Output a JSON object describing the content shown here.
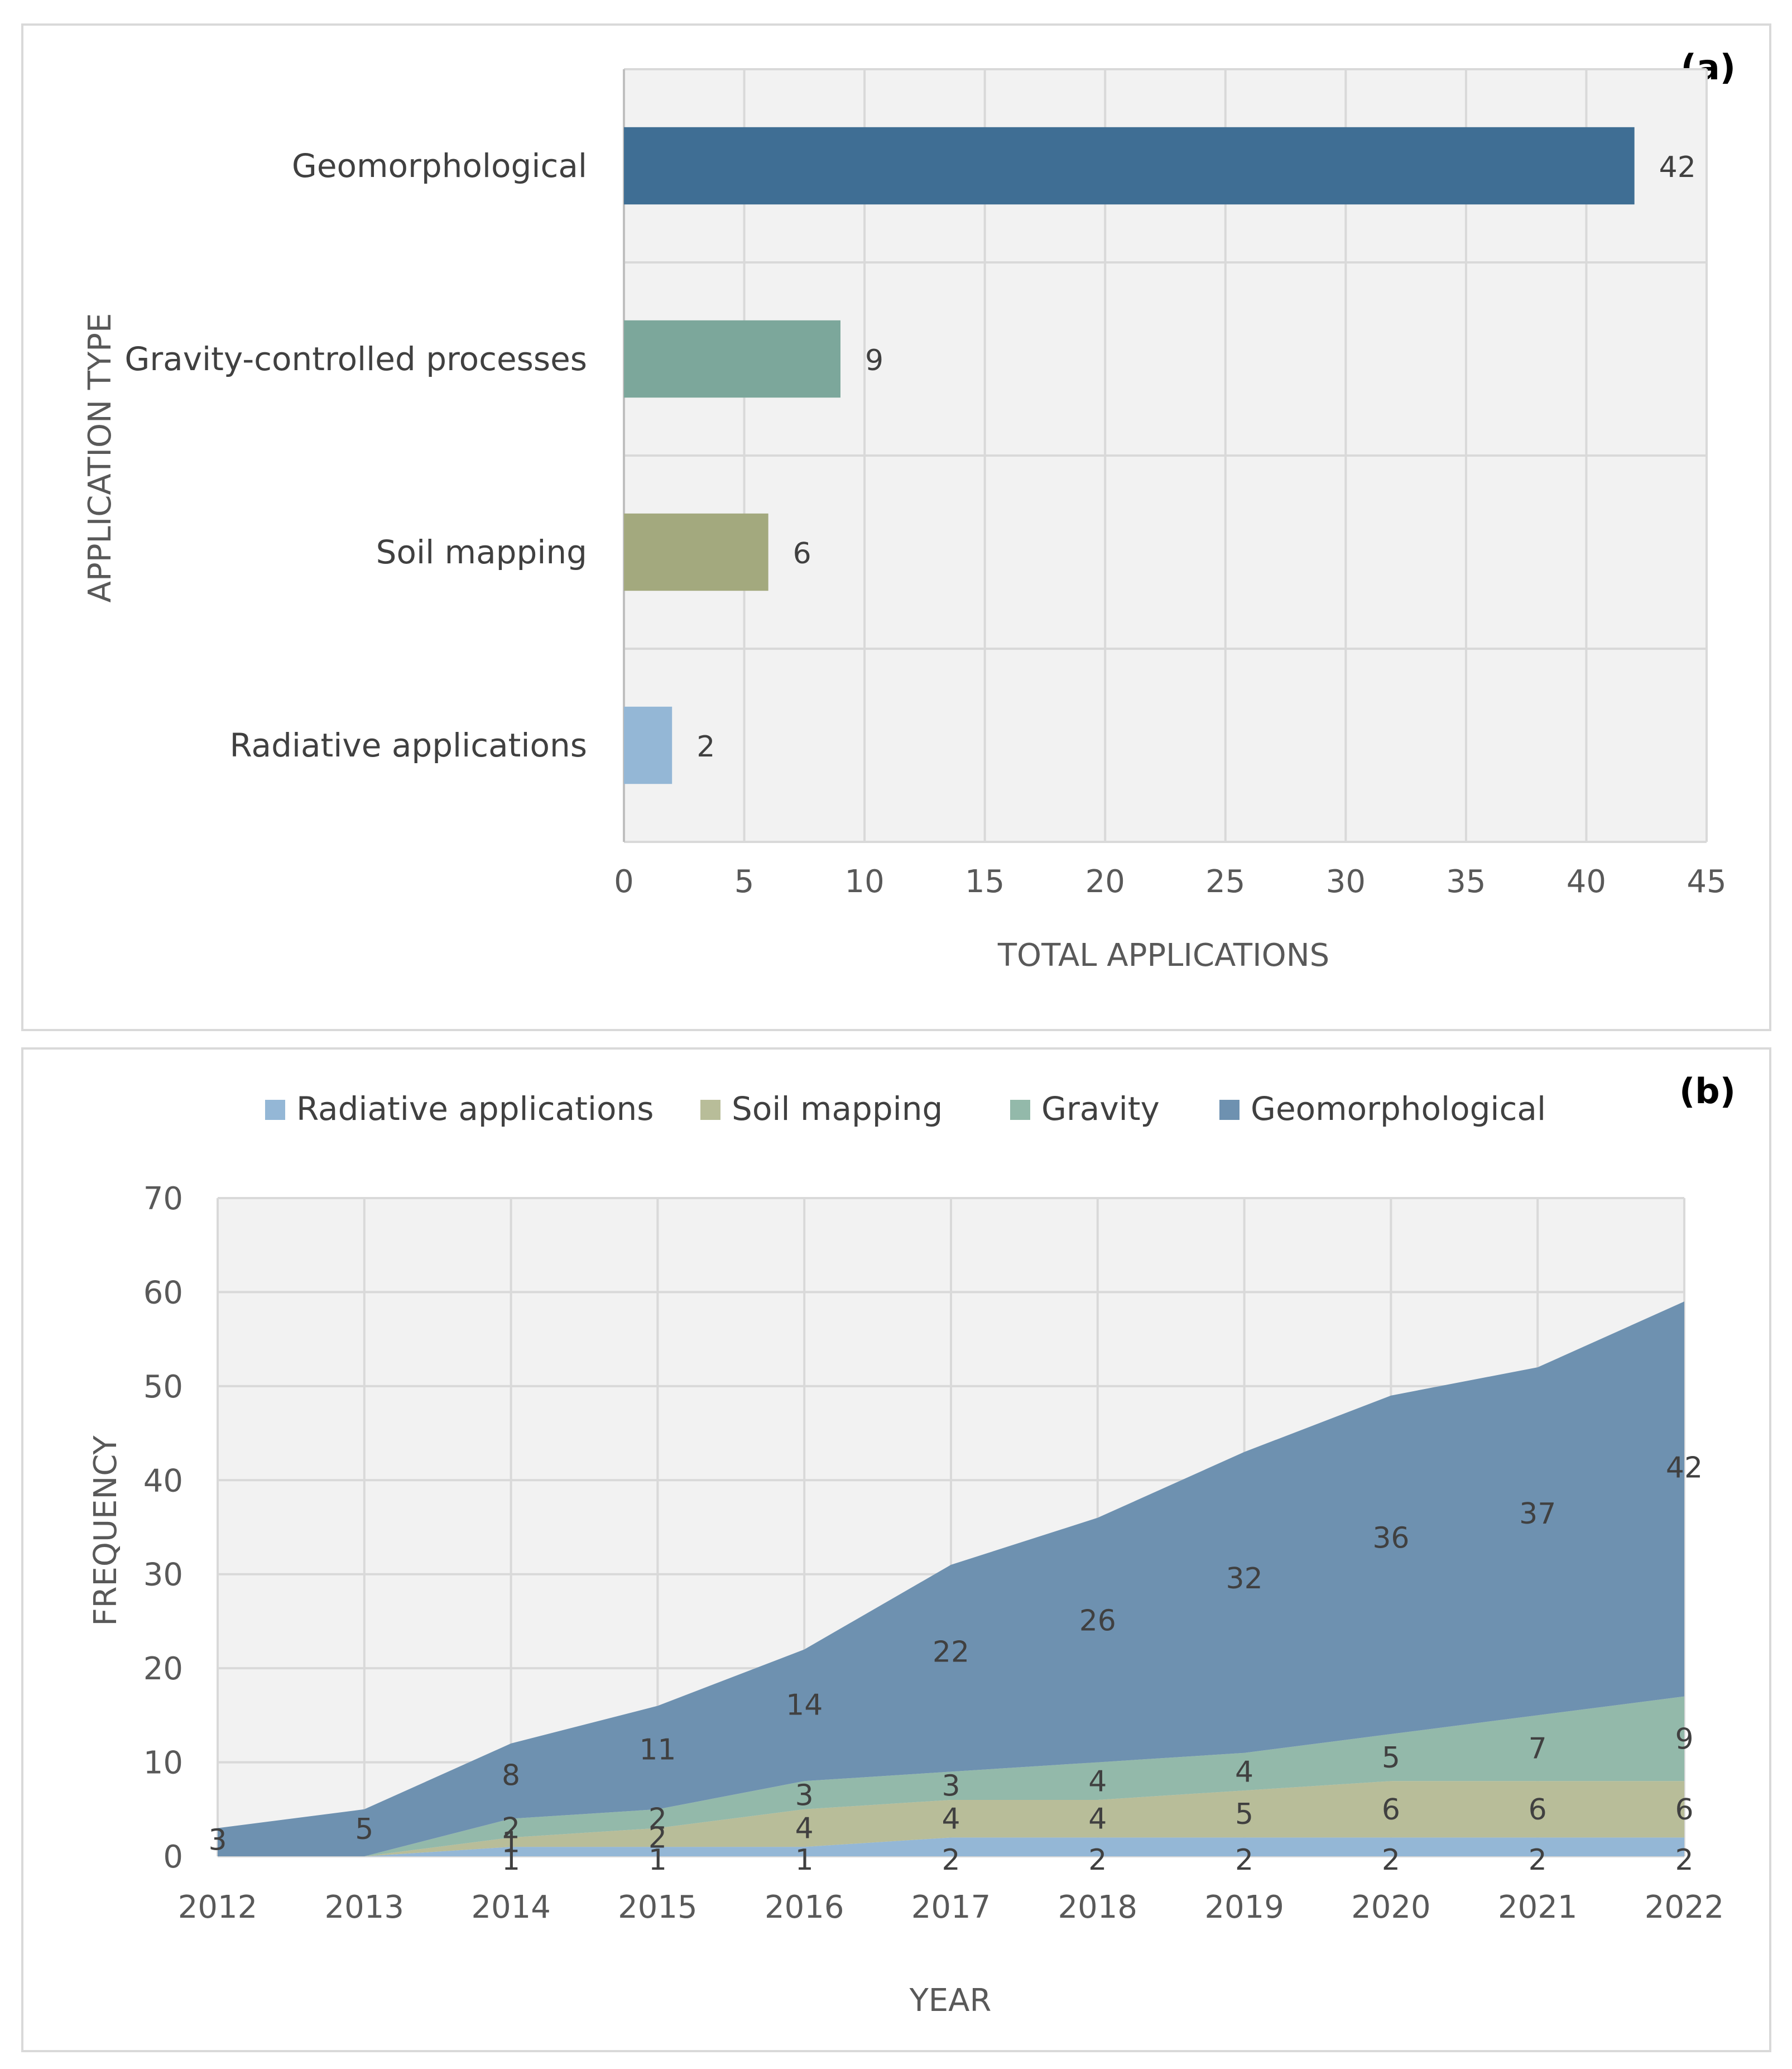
{
  "chart_data": [
    {
      "type": "bar",
      "orientation": "horizontal",
      "panel_label": "(a)",
      "categories": [
        "Geomorphological",
        "Gravity-controlled processes",
        "Soil mapping",
        "Radiative applications"
      ],
      "values": [
        42,
        9,
        6,
        2
      ],
      "colors": [
        "#3f6e94",
        "#7ca79b",
        "#a3a97e",
        "#94b7d6"
      ],
      "xlabel": "TOTAL APPLICATIONS",
      "ylabel": "APPLICATION TYPE",
      "xlim": [
        0,
        45
      ],
      "xticks": [
        "0",
        "5",
        "10",
        "15",
        "20",
        "25",
        "30",
        "35",
        "40",
        "45"
      ],
      "grid": true
    },
    {
      "type": "area",
      "stacked": true,
      "panel_label": "(b)",
      "x": [
        "2012",
        "2013",
        "2014",
        "2015",
        "2016",
        "2017",
        "2018",
        "2019",
        "2020",
        "2021",
        "2022"
      ],
      "series": [
        {
          "name": "Radiative applications",
          "color": "#94b7d6",
          "values": [
            0,
            0,
            1,
            1,
            1,
            2,
            2,
            2,
            2,
            2,
            2
          ],
          "labels": [
            "",
            "",
            "1",
            "1",
            "1",
            "2",
            "2",
            "2",
            "2",
            "2",
            "2"
          ]
        },
        {
          "name": "Soil mapping",
          "color": "#b8bd99",
          "values": [
            0,
            0,
            1,
            2,
            4,
            4,
            4,
            5,
            6,
            6,
            6
          ],
          "labels": [
            "",
            "",
            "1",
            "2",
            "4",
            "4",
            "4",
            "5",
            "6",
            "6",
            "6"
          ]
        },
        {
          "name": "Gravity",
          "color": "#93b9aa",
          "values": [
            0,
            0,
            2,
            2,
            3,
            3,
            4,
            4,
            5,
            7,
            9
          ],
          "labels": [
            "",
            "",
            "2",
            "2",
            "3",
            "3",
            "4",
            "4",
            "5",
            "7",
            "9"
          ]
        },
        {
          "name": "Geomorphological",
          "color": "#6e91b0",
          "values": [
            3,
            5,
            8,
            11,
            14,
            22,
            26,
            32,
            36,
            37,
            42
          ],
          "labels": [
            "3",
            "5",
            "8",
            "11",
            "14",
            "22",
            "26",
            "32",
            "36",
            "37",
            "42"
          ]
        }
      ],
      "xlabel": "YEAR",
      "ylabel": "FREQUENCY",
      "ylim": [
        0,
        70
      ],
      "yticks": [
        "0",
        "10",
        "20",
        "30",
        "40",
        "50",
        "60",
        "70"
      ],
      "legend_position": "top",
      "grid": true
    }
  ]
}
